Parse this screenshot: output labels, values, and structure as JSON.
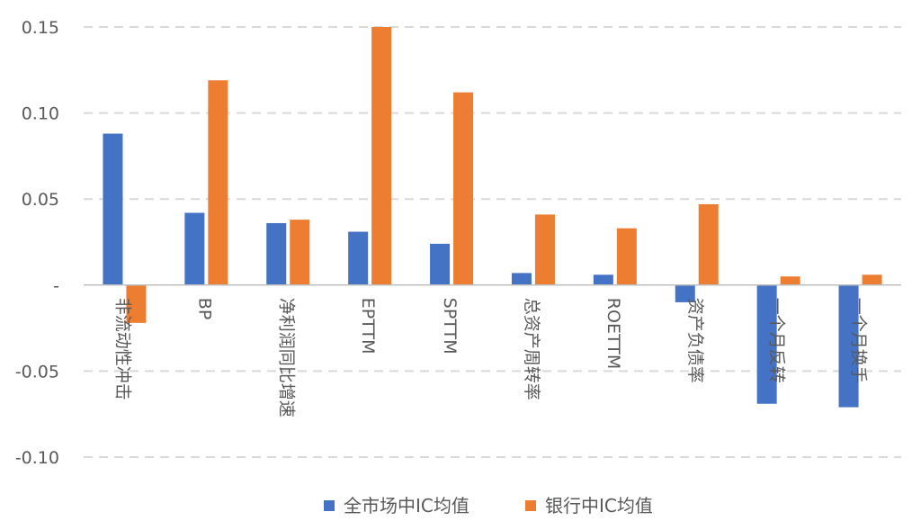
{
  "chart_data": {
    "type": "bar",
    "title": "",
    "xlabel": "",
    "ylabel": "",
    "ylim": [
      -0.1,
      0.15
    ],
    "yticks": [
      0.15,
      0.1,
      0.05,
      0,
      -0.05,
      -0.1
    ],
    "ytick_labels": [
      "0.15",
      "0.10",
      "0.05",
      "-",
      "-0.05",
      "-0.10"
    ],
    "grid": true,
    "legend_position": "bottom",
    "categories": [
      "非流动性冲击",
      "BP",
      "净利润同比增速",
      "EPTTM",
      "SPTTM",
      "总资产周转率",
      "ROETTM",
      "资产负债率",
      "一个月反转",
      "一个月换手"
    ],
    "series": [
      {
        "name": "全市场中IC均值",
        "color": "#4472C4",
        "values": [
          0.088,
          0.042,
          0.036,
          0.031,
          0.024,
          0.007,
          0.006,
          -0.01,
          -0.069,
          -0.071
        ]
      },
      {
        "name": "银行中IC均值",
        "color": "#ED7D31",
        "values": [
          -0.022,
          0.119,
          0.038,
          0.15,
          0.112,
          0.041,
          0.033,
          0.047,
          0.005,
          0.006
        ]
      }
    ]
  }
}
